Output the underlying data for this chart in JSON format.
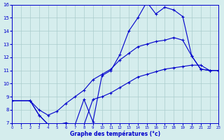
{
  "line1_x": [
    0,
    2,
    3,
    4,
    5,
    6,
    7,
    8,
    9,
    10,
    11,
    12,
    13,
    14,
    15,
    16,
    17,
    18,
    19,
    20,
    21,
    22,
    23
  ],
  "line1_y": [
    8.7,
    8.7,
    7.6,
    6.9,
    6.9,
    7.0,
    6.85,
    8.8,
    7.1,
    10.6,
    11.0,
    12.2,
    14.0,
    15.0,
    16.2,
    15.3,
    15.8,
    15.6,
    15.1,
    12.1,
    11.1,
    11.0,
    11.0
  ],
  "line2_x": [
    2,
    3,
    4,
    5,
    6,
    7,
    8,
    9,
    10,
    11,
    12,
    13,
    14,
    15,
    16,
    17,
    18,
    19,
    20,
    21,
    22,
    23
  ],
  "line2_y": [
    8.7,
    8.0,
    7.6,
    7.9,
    8.5,
    9.0,
    9.5,
    10.3,
    10.7,
    11.1,
    11.8,
    12.3,
    12.8,
    13.0,
    13.2,
    13.3,
    13.5,
    13.3,
    12.1,
    11.1,
    11.0,
    11.0
  ],
  "line3_x": [
    0,
    2,
    3,
    4,
    5,
    6,
    7,
    8,
    9,
    10,
    11,
    12,
    13,
    14,
    15,
    16,
    17,
    18,
    19,
    20,
    21,
    22,
    23
  ],
  "line3_y": [
    8.7,
    8.7,
    7.6,
    6.9,
    6.9,
    7.0,
    6.85,
    6.85,
    8.8,
    9.0,
    9.3,
    9.7,
    10.1,
    10.5,
    10.7,
    10.9,
    11.1,
    11.2,
    11.3,
    11.4,
    11.4,
    11.0,
    11.0
  ],
  "line_color": "#0000cc",
  "bg_color": "#d5eded",
  "grid_color": "#aacccc",
  "xlabel": "Graphe des températures (°c)",
  "xlim": [
    0,
    23
  ],
  "ylim": [
    7,
    16
  ],
  "xticks": [
    0,
    1,
    2,
    3,
    4,
    5,
    6,
    7,
    8,
    9,
    10,
    11,
    12,
    13,
    14,
    15,
    16,
    17,
    18,
    19,
    20,
    21,
    22,
    23
  ],
  "yticks": [
    7,
    8,
    9,
    10,
    11,
    12,
    13,
    14,
    15,
    16
  ]
}
